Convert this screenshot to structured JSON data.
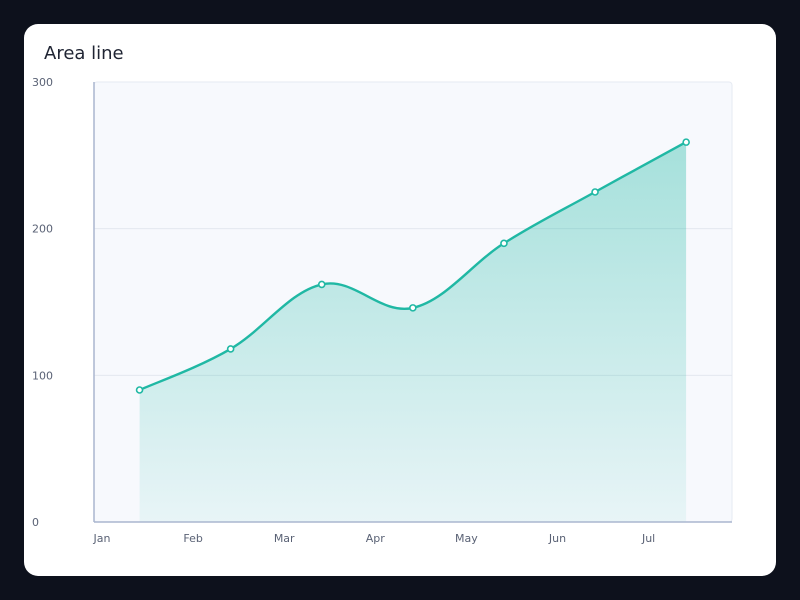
{
  "chart_data": {
    "type": "area",
    "title": "Area line",
    "xlabel": "",
    "ylabel": "",
    "categories": [
      "Jan",
      "Feb",
      "Mar",
      "Apr",
      "May",
      "Jun",
      "Jul"
    ],
    "series": [
      {
        "values": [
          90,
          118,
          162,
          146,
          190,
          225,
          259
        ]
      }
    ],
    "ylim": [
      0,
      300
    ],
    "yticks": [
      0,
      100,
      200,
      300
    ],
    "grid": true,
    "legend": "none",
    "colors": {
      "line": "#20b8a4",
      "fill": "#20b8a4",
      "plot_background": "#f7f9fd",
      "gridline": "#e3e7ef",
      "axis": "#aab6cf"
    }
  }
}
